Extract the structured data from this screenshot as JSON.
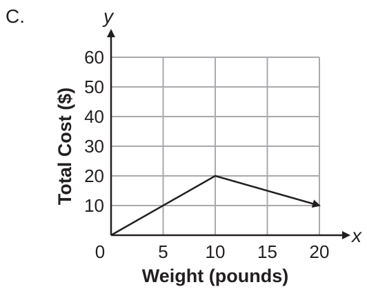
{
  "panel_label": "C.",
  "chart_data": {
    "type": "line",
    "xlabel": "Weight (pounds)",
    "ylabel": "Total Cost ($)",
    "x_axis_var": "x",
    "y_axis_var": "y",
    "xlim": [
      0,
      20
    ],
    "ylim": [
      0,
      60
    ],
    "x_ticks": [
      0,
      5,
      10,
      15,
      20
    ],
    "x_tick_labels": [
      "0",
      "5",
      "10",
      "15",
      "20"
    ],
    "y_ticks": [
      10,
      20,
      30,
      40,
      50,
      60
    ],
    "y_tick_labels": [
      "10",
      "20",
      "30",
      "40",
      "50",
      "60"
    ],
    "grid": true,
    "series": [
      {
        "x": [
          0,
          10,
          20
        ],
        "y": [
          0,
          20,
          10
        ],
        "end_arrow": true
      }
    ],
    "colors": {
      "line": "#231f20",
      "grid": "#a7a9ac"
    }
  }
}
